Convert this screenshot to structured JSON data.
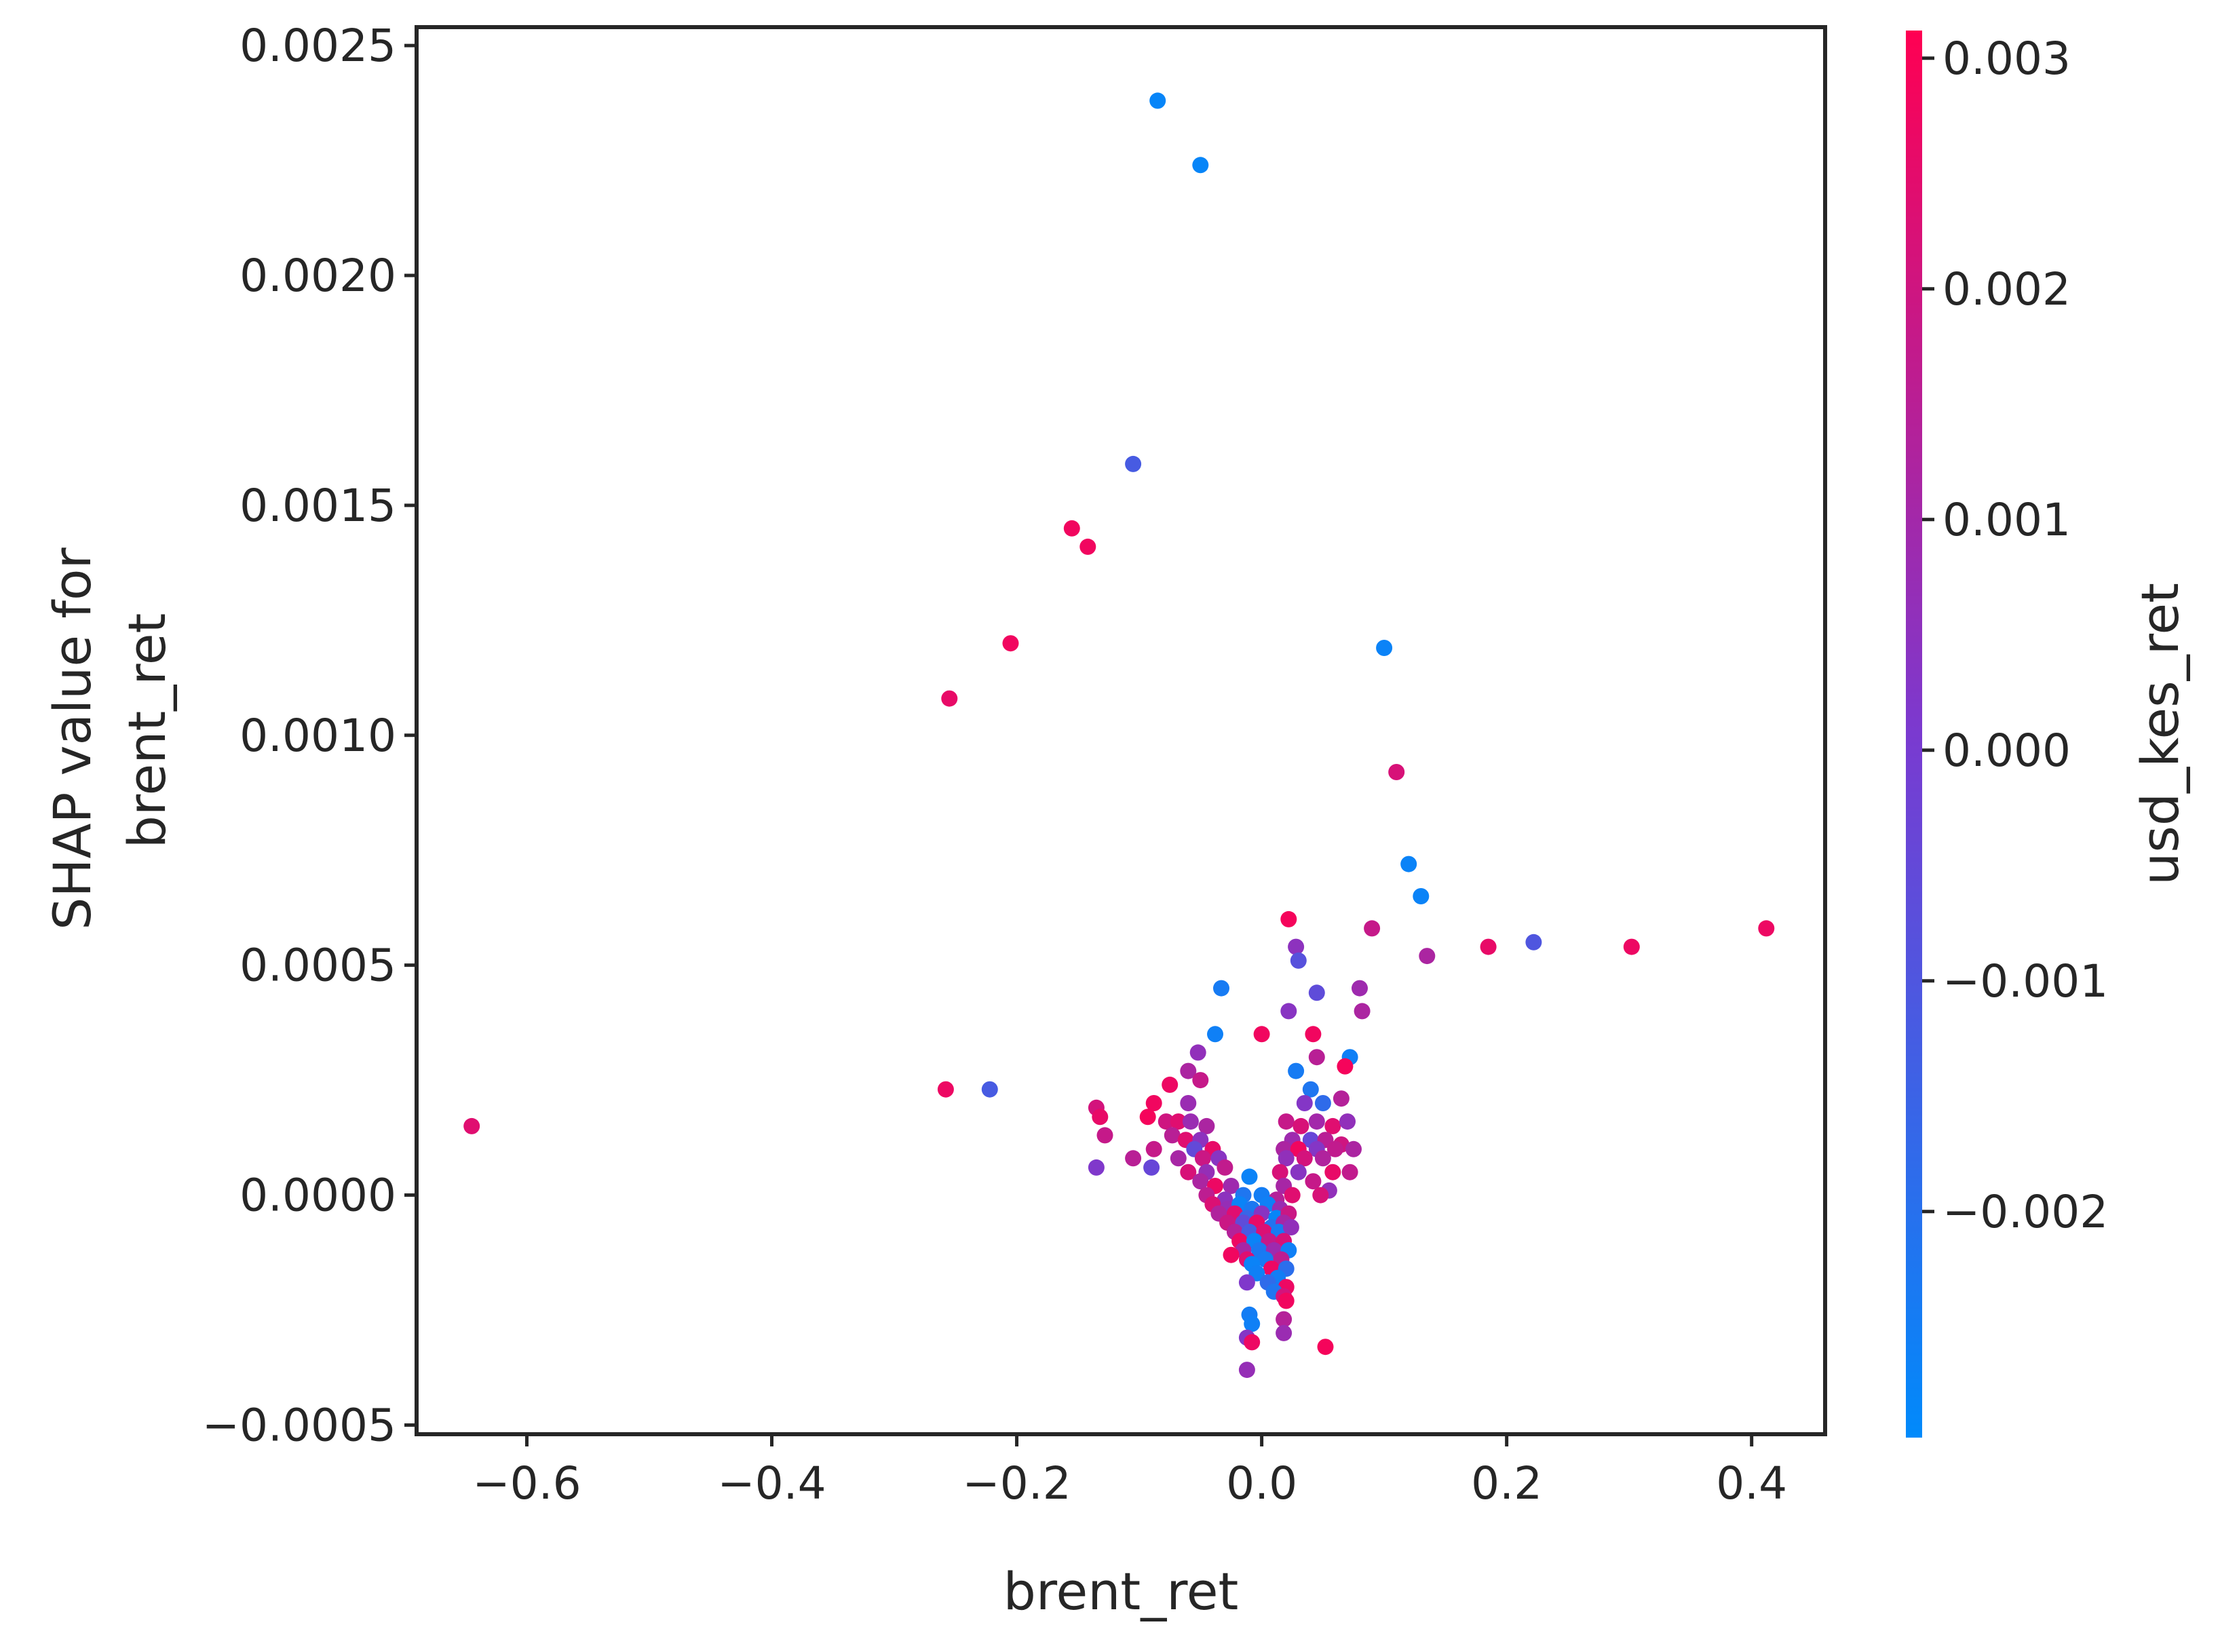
{
  "chart_data": {
    "type": "scatter",
    "xlabel": "brent_ret",
    "ylabel_lines": [
      "SHAP value for",
      "brent_ret"
    ],
    "xlim": [
      -0.69,
      0.46
    ],
    "ylim": [
      -0.00052,
      0.00254
    ],
    "x_ticks": [
      {
        "value": -0.6,
        "label": "−0.6"
      },
      {
        "value": -0.4,
        "label": "−0.4"
      },
      {
        "value": -0.2,
        "label": "−0.2"
      },
      {
        "value": 0.0,
        "label": "0.0"
      },
      {
        "value": 0.2,
        "label": "0.2"
      },
      {
        "value": 0.4,
        "label": "0.4"
      }
    ],
    "y_ticks": [
      {
        "value": -0.0005,
        "label": "−0.0005"
      },
      {
        "value": 0.0,
        "label": "0.0000"
      },
      {
        "value": 0.0005,
        "label": "0.0005"
      },
      {
        "value": 0.001,
        "label": "0.0010"
      },
      {
        "value": 0.0015,
        "label": "0.0015"
      },
      {
        "value": 0.002,
        "label": "0.0020"
      },
      {
        "value": 0.0025,
        "label": "0.0025"
      }
    ],
    "grid": false,
    "colorbar": {
      "label": "usd_kes_ret",
      "range": [
        -0.00298,
        0.00312
      ],
      "colors": {
        "low": "#008afb",
        "mid": "#7a3ad0",
        "high": "#ff0052"
      },
      "ticks": [
        {
          "value": 0.003,
          "label": "0.003"
        },
        {
          "value": 0.002,
          "label": "0.002"
        },
        {
          "value": 0.001,
          "label": "0.001"
        },
        {
          "value": 0.0,
          "label": "0.000"
        },
        {
          "value": -0.001,
          "label": "−0.001"
        },
        {
          "value": -0.002,
          "label": "−0.002"
        }
      ]
    },
    "points": [
      {
        "x": -0.085,
        "y": 0.00238,
        "c": -0.0028
      },
      {
        "x": -0.05,
        "y": 0.00224,
        "c": -0.0028
      },
      {
        "x": -0.105,
        "y": 0.00159,
        "c": -0.0012
      },
      {
        "x": -0.155,
        "y": 0.00145,
        "c": 0.0028
      },
      {
        "x": -0.142,
        "y": 0.00141,
        "c": 0.0028
      },
      {
        "x": -0.205,
        "y": 0.0012,
        "c": 0.0028
      },
      {
        "x": -0.255,
        "y": 0.00108,
        "c": 0.0026
      },
      {
        "x": 0.1,
        "y": 0.00119,
        "c": -0.0027
      },
      {
        "x": 0.11,
        "y": 0.00092,
        "c": 0.0022
      },
      {
        "x": 0.12,
        "y": 0.00072,
        "c": -0.0027
      },
      {
        "x": 0.13,
        "y": 0.00065,
        "c": -0.0027
      },
      {
        "x": 0.022,
        "y": 0.0006,
        "c": 0.0029
      },
      {
        "x": 0.09,
        "y": 0.00058,
        "c": 0.0018
      },
      {
        "x": 0.185,
        "y": 0.00054,
        "c": 0.0026
      },
      {
        "x": 0.222,
        "y": 0.00055,
        "c": -0.001
      },
      {
        "x": 0.302,
        "y": 0.00054,
        "c": 0.0027
      },
      {
        "x": 0.412,
        "y": 0.00058,
        "c": 0.0027
      },
      {
        "x": 0.135,
        "y": 0.00052,
        "c": 0.0012
      },
      {
        "x": 0.028,
        "y": 0.00054,
        "c": 0.0005
      },
      {
        "x": 0.03,
        "y": 0.00051,
        "c": -0.0008
      },
      {
        "x": -0.033,
        "y": 0.00045,
        "c": -0.0024
      },
      {
        "x": 0.045,
        "y": 0.00044,
        "c": -0.0006
      },
      {
        "x": 0.08,
        "y": 0.00045,
        "c": 0.0009
      },
      {
        "x": 0.082,
        "y": 0.0004,
        "c": 0.0012
      },
      {
        "x": 0.022,
        "y": 0.0004,
        "c": 0.0004
      },
      {
        "x": 0.0,
        "y": 0.00035,
        "c": 0.0028
      },
      {
        "x": -0.038,
        "y": 0.00035,
        "c": -0.0026
      },
      {
        "x": 0.042,
        "y": 0.00035,
        "c": 0.0028
      },
      {
        "x": 0.045,
        "y": 0.0003,
        "c": 0.0015
      },
      {
        "x": 0.072,
        "y": 0.0003,
        "c": -0.0026
      },
      {
        "x": -0.052,
        "y": 0.00031,
        "c": 0.0006
      },
      {
        "x": 0.068,
        "y": 0.00028,
        "c": 0.0029
      },
      {
        "x": 0.028,
        "y": 0.00027,
        "c": -0.0024
      },
      {
        "x": -0.06,
        "y": 0.00027,
        "c": 0.0012
      },
      {
        "x": -0.05,
        "y": 0.00025,
        "c": 0.0018
      },
      {
        "x": -0.075,
        "y": 0.00024,
        "c": 0.0027
      },
      {
        "x": -0.258,
        "y": 0.00023,
        "c": 0.0027
      },
      {
        "x": -0.222,
        "y": 0.00023,
        "c": -0.0012
      },
      {
        "x": 0.04,
        "y": 0.00023,
        "c": -0.0022
      },
      {
        "x": 0.065,
        "y": 0.00021,
        "c": 0.0014
      },
      {
        "x": -0.135,
        "y": 0.00019,
        "c": 0.0021
      },
      {
        "x": -0.088,
        "y": 0.0002,
        "c": 0.0028
      },
      {
        "x": -0.06,
        "y": 0.0002,
        "c": 0.0008
      },
      {
        "x": 0.035,
        "y": 0.0002,
        "c": 0.0003
      },
      {
        "x": 0.05,
        "y": 0.0002,
        "c": -0.0018
      },
      {
        "x": -0.132,
        "y": 0.00017,
        "c": 0.0026
      },
      {
        "x": -0.093,
        "y": 0.00017,
        "c": 0.0029
      },
      {
        "x": -0.078,
        "y": 0.00016,
        "c": 0.002
      },
      {
        "x": -0.068,
        "y": 0.00016,
        "c": 0.0024
      },
      {
        "x": -0.058,
        "y": 0.00016,
        "c": 0.0008
      },
      {
        "x": -0.045,
        "y": 0.00015,
        "c": 0.0012
      },
      {
        "x": 0.02,
        "y": 0.00016,
        "c": 0.0018
      },
      {
        "x": 0.032,
        "y": 0.00015,
        "c": 0.0022
      },
      {
        "x": 0.045,
        "y": 0.00016,
        "c": 0.001
      },
      {
        "x": 0.058,
        "y": 0.00015,
        "c": 0.0024
      },
      {
        "x": 0.07,
        "y": 0.00016,
        "c": 0.0006
      },
      {
        "x": -0.645,
        "y": 0.00015,
        "c": 0.0024
      },
      {
        "x": -0.128,
        "y": 0.00013,
        "c": 0.0018
      },
      {
        "x": -0.073,
        "y": 0.00013,
        "c": 0.0015
      },
      {
        "x": -0.062,
        "y": 0.00012,
        "c": 0.0024
      },
      {
        "x": -0.05,
        "y": 0.00012,
        "c": 0.0005
      },
      {
        "x": 0.025,
        "y": 0.00012,
        "c": 0.0009
      },
      {
        "x": 0.04,
        "y": 0.00012,
        "c": -0.0004
      },
      {
        "x": 0.052,
        "y": 0.00012,
        "c": 0.0015
      },
      {
        "x": 0.065,
        "y": 0.00011,
        "c": 0.002
      },
      {
        "x": -0.088,
        "y": 0.0001,
        "c": 0.0018
      },
      {
        "x": -0.055,
        "y": 0.0001,
        "c": -0.0005
      },
      {
        "x": -0.04,
        "y": 0.0001,
        "c": 0.0026
      },
      {
        "x": 0.018,
        "y": 0.0001,
        "c": 0.0012
      },
      {
        "x": 0.03,
        "y": 0.0001,
        "c": 0.0028
      },
      {
        "x": 0.045,
        "y": 0.0001,
        "c": 0.0003
      },
      {
        "x": 0.06,
        "y": 0.0001,
        "c": 0.0017
      },
      {
        "x": 0.075,
        "y": 0.0001,
        "c": 0.0012
      },
      {
        "x": -0.105,
        "y": 8e-05,
        "c": 0.0015
      },
      {
        "x": -0.068,
        "y": 8e-05,
        "c": 0.0011
      },
      {
        "x": -0.048,
        "y": 8e-05,
        "c": 0.0019
      },
      {
        "x": -0.035,
        "y": 8e-05,
        "c": 0.0004
      },
      {
        "x": 0.02,
        "y": 8e-05,
        "c": 0.0006
      },
      {
        "x": 0.035,
        "y": 8e-05,
        "c": 0.0021
      },
      {
        "x": 0.05,
        "y": 8e-05,
        "c": 0.0013
      },
      {
        "x": -0.135,
        "y": 6e-05,
        "c": 0.0002
      },
      {
        "x": -0.09,
        "y": 6e-05,
        "c": -0.0004
      },
      {
        "x": -0.06,
        "y": 5e-05,
        "c": 0.0022
      },
      {
        "x": -0.045,
        "y": 5e-05,
        "c": 0.0007
      },
      {
        "x": -0.03,
        "y": 6e-05,
        "c": 0.0017
      },
      {
        "x": 0.015,
        "y": 5e-05,
        "c": 0.0022
      },
      {
        "x": 0.03,
        "y": 5e-05,
        "c": 0.0004
      },
      {
        "x": 0.058,
        "y": 5e-05,
        "c": 0.0026
      },
      {
        "x": 0.072,
        "y": 5e-05,
        "c": 0.0017
      },
      {
        "x": -0.01,
        "y": 4e-05,
        "c": -0.0027
      },
      {
        "x": -0.05,
        "y": 3e-05,
        "c": 0.0012
      },
      {
        "x": -0.038,
        "y": 2e-05,
        "c": 0.0027
      },
      {
        "x": -0.025,
        "y": 2e-05,
        "c": 0.0009
      },
      {
        "x": 0.018,
        "y": 2e-05,
        "c": 0.0011
      },
      {
        "x": 0.042,
        "y": 3e-05,
        "c": 0.0018
      },
      {
        "x": 0.055,
        "y": 1e-05,
        "c": 0.0006
      },
      {
        "x": -0.045,
        "y": 0.0,
        "c": 0.0016
      },
      {
        "x": -0.03,
        "y": -1e-05,
        "c": 0.0005
      },
      {
        "x": -0.015,
        "y": 0.0,
        "c": -0.0022
      },
      {
        "x": 0.0,
        "y": 0.0,
        "c": -0.0025
      },
      {
        "x": 0.012,
        "y": -1e-05,
        "c": 0.0014
      },
      {
        "x": 0.025,
        "y": 0.0,
        "c": 0.0024
      },
      {
        "x": 0.048,
        "y": 0.0,
        "c": 0.0022
      },
      {
        "x": -0.04,
        "y": -2e-05,
        "c": 0.0023
      },
      {
        "x": -0.028,
        "y": -3e-05,
        "c": 0.0007
      },
      {
        "x": -0.018,
        "y": -2e-05,
        "c": -0.0027
      },
      {
        "x": -0.008,
        "y": -3e-05,
        "c": -0.0023
      },
      {
        "x": 0.005,
        "y": -2e-05,
        "c": -0.0026
      },
      {
        "x": 0.015,
        "y": -3e-05,
        "c": 0.0008
      },
      {
        "x": -0.035,
        "y": -4e-05,
        "c": 0.0013
      },
      {
        "x": -0.022,
        "y": -4e-05,
        "c": 0.0024
      },
      {
        "x": -0.012,
        "y": -5e-05,
        "c": -0.0016
      },
      {
        "x": 0.0,
        "y": -4e-05,
        "c": 0.0004
      },
      {
        "x": 0.012,
        "y": -5e-05,
        "c": -0.0028
      },
      {
        "x": 0.022,
        "y": -4e-05,
        "c": 0.0019
      },
      {
        "x": -0.028,
        "y": -6e-05,
        "c": 0.0019
      },
      {
        "x": -0.015,
        "y": -6e-05,
        "c": -0.0006
      },
      {
        "x": -0.004,
        "y": -6e-05,
        "c": 0.0026
      },
      {
        "x": 0.008,
        "y": -7e-05,
        "c": -0.0021
      },
      {
        "x": 0.018,
        "y": -6e-05,
        "c": 0.0011
      },
      {
        "x": -0.022,
        "y": -8e-05,
        "c": 0.0014
      },
      {
        "x": -0.01,
        "y": -8e-05,
        "c": -0.0012
      },
      {
        "x": 0.002,
        "y": -8e-05,
        "c": 0.0023
      },
      {
        "x": 0.014,
        "y": -8e-05,
        "c": -0.0024
      },
      {
        "x": 0.024,
        "y": -7e-05,
        "c": 0.0006
      },
      {
        "x": -0.018,
        "y": -0.0001,
        "c": 0.0027
      },
      {
        "x": -0.006,
        "y": -0.0001,
        "c": -0.0027
      },
      {
        "x": 0.006,
        "y": -0.0001,
        "c": 0.0018
      },
      {
        "x": 0.018,
        "y": -0.0001,
        "c": 0.0022
      },
      {
        "x": -0.015,
        "y": -0.00012,
        "c": 0.0011
      },
      {
        "x": -0.002,
        "y": -0.00012,
        "c": -0.0023
      },
      {
        "x": 0.01,
        "y": -0.00012,
        "c": 0.0009
      },
      {
        "x": 0.022,
        "y": -0.00012,
        "c": -0.0026
      },
      {
        "x": -0.012,
        "y": -0.00014,
        "c": 0.0024
      },
      {
        "x": 0.003,
        "y": -0.00014,
        "c": -0.0024
      },
      {
        "x": 0.016,
        "y": -0.00014,
        "c": 0.0016
      },
      {
        "x": -0.008,
        "y": -0.00015,
        "c": -0.0027
      },
      {
        "x": 0.008,
        "y": -0.00016,
        "c": 0.0027
      },
      {
        "x": 0.02,
        "y": -0.00016,
        "c": -0.0019
      },
      {
        "x": -0.025,
        "y": -0.00013,
        "c": 0.0028
      },
      {
        "x": -0.004,
        "y": -0.00017,
        "c": -0.0026
      },
      {
        "x": 0.013,
        "y": -0.00018,
        "c": -0.0025
      },
      {
        "x": -0.012,
        "y": -0.00019,
        "c": 0.0002
      },
      {
        "x": 0.005,
        "y": -0.00019,
        "c": -0.0018
      },
      {
        "x": 0.02,
        "y": -0.0002,
        "c": 0.0027
      },
      {
        "x": 0.01,
        "y": -0.00021,
        "c": -0.0022
      },
      {
        "x": 0.018,
        "y": -0.00022,
        "c": 0.0021
      },
      {
        "x": 0.02,
        "y": -0.00023,
        "c": 0.0028
      },
      {
        "x": -0.01,
        "y": -0.00026,
        "c": -0.0025
      },
      {
        "x": -0.008,
        "y": -0.00028,
        "c": -0.0026
      },
      {
        "x": 0.018,
        "y": -0.00027,
        "c": 0.0014
      },
      {
        "x": 0.018,
        "y": -0.0003,
        "c": 0.0008
      },
      {
        "x": -0.012,
        "y": -0.00031,
        "c": 0.0003
      },
      {
        "x": -0.008,
        "y": -0.00032,
        "c": 0.0027
      },
      {
        "x": 0.052,
        "y": -0.00033,
        "c": 0.0029
      },
      {
        "x": -0.012,
        "y": -0.00038,
        "c": 0.0007
      }
    ]
  }
}
